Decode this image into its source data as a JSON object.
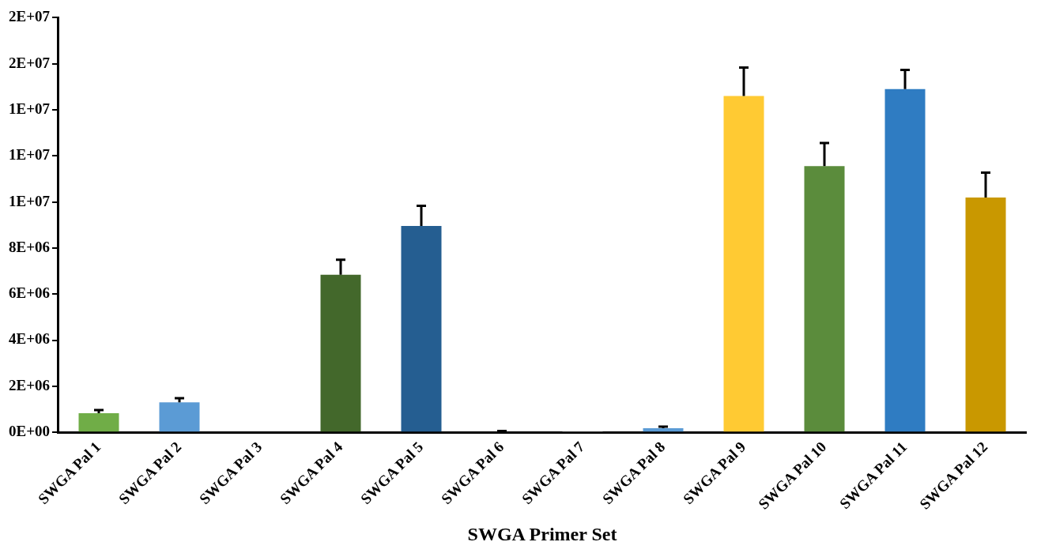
{
  "chart_data": {
    "type": "bar",
    "xlabel": "SWGA Primer Set",
    "categories": [
      "SWGA Pal 1",
      "SWGA Pal 2",
      "SWGA Pal 3",
      "SWGA Pal 4",
      "SWGA Pal 5",
      "SWGA Pal 6",
      "SWGA Pal 7",
      "SWGA Pal 8",
      "SWGA Pal 9",
      "SWGA Pal 10",
      "SWGA Pal 11",
      "SWGA Pal 12"
    ],
    "values": [
      830000,
      1300000,
      null,
      6840000,
      8960000,
      30000,
      20000,
      180000,
      14600000,
      11560000,
      14900000,
      10190000
    ],
    "colors": [
      "#70ad47",
      "#5b9bd5",
      "#a5a5a5",
      "#43682b",
      "#255e91",
      "#9e480e",
      "#636363",
      "#5b9bd5",
      "#ffca33",
      "#5b8c3c",
      "#2f7cc2",
      "#c99800"
    ],
    "errors": [
      [
        830000,
        970000
      ],
      [
        1300000,
        1480000
      ],
      null,
      [
        6840000,
        7490000
      ],
      [
        8960000,
        9830000
      ],
      [
        30000,
        60000
      ],
      null,
      [
        180000,
        250000
      ],
      [
        14600000,
        15840000
      ],
      [
        11560000,
        12560000
      ],
      [
        14900000,
        15730000
      ],
      [
        10190000,
        11270000
      ]
    ],
    "ylim": [
      0,
      18000000
    ],
    "yticks": [
      {
        "value": 0,
        "label": "0E+00"
      },
      {
        "value": 2000000,
        "label": "2E+06"
      },
      {
        "value": 4000000,
        "label": "4E+06"
      },
      {
        "value": 6000000,
        "label": "6E+06"
      },
      {
        "value": 8000000,
        "label": "8E+06"
      },
      {
        "value": 10000000,
        "label": "1E+07"
      },
      {
        "value": 12000000,
        "label": "1E+07"
      },
      {
        "value": 14000000,
        "label": "1E+07"
      },
      {
        "value": 16000000,
        "label": "2E+07"
      },
      {
        "value": 18000000,
        "label": "2E+07"
      }
    ],
    "grid": false
  }
}
